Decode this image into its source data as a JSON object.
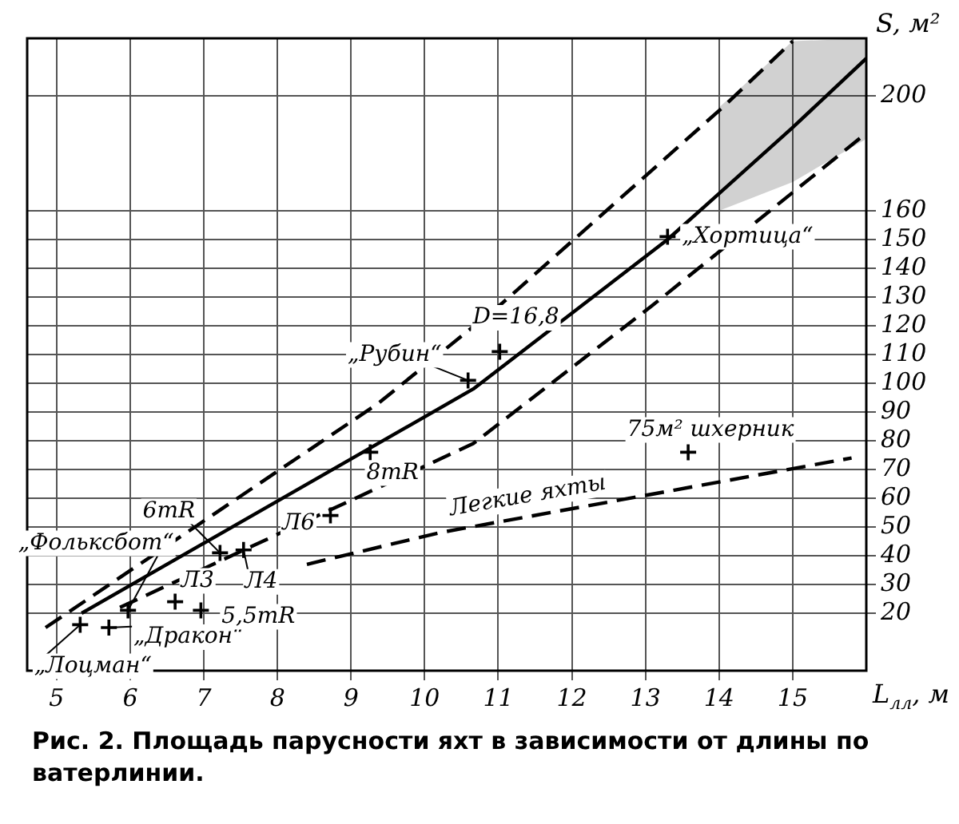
{
  "chart_data": {
    "type": "line",
    "title": "Рис. 2. Площадь парусности яхт в зависимости от длины по ватерлинии.",
    "xlabel": "L$_{лл}$, м",
    "ylabel": "S, м²",
    "xlim": [
      4.6,
      16
    ],
    "ylim": [
      0,
      220
    ],
    "xticks": [
      5,
      6,
      7,
      8,
      9,
      10,
      11,
      12,
      13,
      14,
      15
    ],
    "yticks": [
      20,
      30,
      40,
      50,
      60,
      70,
      80,
      90,
      100,
      110,
      120,
      130,
      140,
      150,
      160,
      200
    ],
    "grid": true,
    "legend": false,
    "series": [
      {
        "type": "line",
        "line_style": "dashed",
        "color": "#000000",
        "x": [
          4.85,
          9.37,
          11.06,
          14.05,
          15
        ],
        "values": [
          15,
          93,
          128,
          196,
          219
        ]
      },
      {
        "type": "line",
        "line_style": "solid",
        "color": "#000000",
        "x": [
          5.34,
          10.66,
          13.3,
          14,
          15,
          16
        ],
        "values": [
          20,
          98,
          150,
          166,
          189,
          213
        ],
        "lower": [
          null,
          null,
          null,
          160,
          170,
          185
        ],
        "upper": [
          null,
          null,
          null,
          196,
          219,
          220
        ]
      },
      {
        "type": "line",
        "line_style": "dashed",
        "color": "#000000",
        "x": [
          5.86,
          10.66,
          13.09,
          16
        ],
        "values": [
          22,
          79,
          127,
          187
        ]
      },
      {
        "type": "line",
        "line_style": "dashed",
        "color": "#000000",
        "x": [
          8.4,
          10.2,
          15.8
        ],
        "values": [
          37,
          48,
          74
        ]
      },
      {
        "type": "scatter",
        "marker": "cross",
        "color": "#000000",
        "x": [
          5.32,
          5.71,
          5.97,
          6.61,
          6.96,
          7.22,
          7.54,
          8.72,
          9.26,
          10.59,
          11.02,
          13.3,
          13.58
        ],
        "values": [
          16,
          15,
          21,
          24,
          21,
          41,
          42,
          54,
          76,
          101,
          111,
          151,
          76
        ]
      }
    ],
    "annotations": [
      {
        "text": "„Лоцман“",
        "x": 5.32,
        "y": 16
      },
      {
        "text": "„Дракон“",
        "x": 5.71,
        "y": 15
      },
      {
        "text": "„Фольксбот“",
        "x": 5.97,
        "y": 21
      },
      {
        "text": "6mR",
        "x": 7.22,
        "y": 41
      },
      {
        "text": "Л3",
        "x": 6.61,
        "y": 24
      },
      {
        "text": "Л4",
        "x": 7.54,
        "y": 42
      },
      {
        "text": "5,5mR",
        "x": 6.96,
        "y": 21
      },
      {
        "text": "Л6",
        "x": 8.72,
        "y": 54
      },
      {
        "text": "8mR",
        "x": 9.26,
        "y": 76
      },
      {
        "text": "„Рубин“",
        "x": 10.59,
        "y": 101
      },
      {
        "text": "D=16,8",
        "x": 11.5,
        "y": 115
      },
      {
        "text": "75м² шхерник",
        "x": 13.58,
        "y": 76
      },
      {
        "text": "Легкие яхты",
        "x": 11.4,
        "y": 54
      },
      {
        "text": "„Хортица“",
        "x": 13.3,
        "y": 151
      }
    ]
  }
}
